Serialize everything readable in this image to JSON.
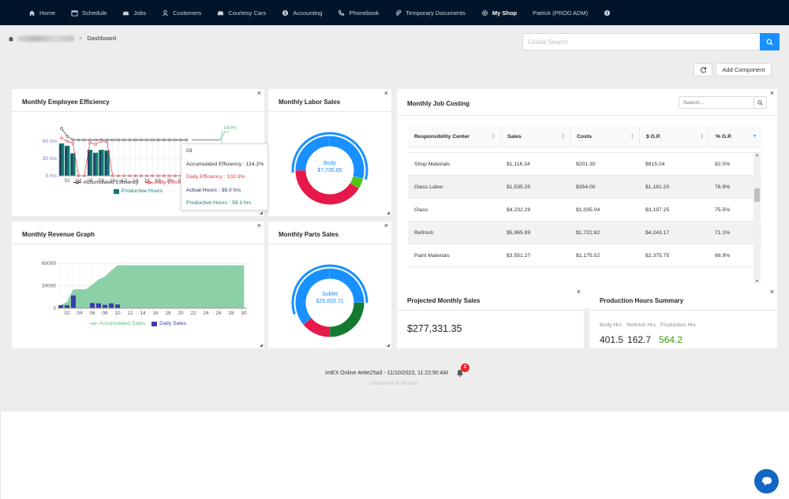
{
  "nav": {
    "items": [
      {
        "label": "Home",
        "icon": "home-icon"
      },
      {
        "label": "Schedule",
        "icon": "calendar-icon"
      },
      {
        "label": "Jobs",
        "icon": "car-icon"
      },
      {
        "label": "Customers",
        "icon": "user-icon"
      },
      {
        "label": "Courtesy Cars",
        "icon": "car-front-icon"
      },
      {
        "label": "Accounting",
        "icon": "dollar-icon"
      },
      {
        "label": "Phonebook",
        "icon": "phone-icon"
      },
      {
        "label": "Temporary Documents",
        "icon": "paperclip-icon"
      },
      {
        "label": "My Shop",
        "icon": "gear-icon"
      },
      {
        "label": "Patrick (PROD ADM)",
        "icon": ""
      }
    ]
  },
  "breadcrumb": {
    "current": "Dashboard"
  },
  "search": {
    "placeholder": "Global Search"
  },
  "toolbar": {
    "add_component": "Add Component"
  },
  "efficiency": {
    "title": "Monthly Employee Efficiency",
    "legend_accum": "Accumulated Efficiency",
    "legend_daily": "Daily Efficiency",
    "legend_prod": "Productive Hours",
    "tooltip": {
      "day": "03",
      "accum": "Accumulated Efficiency : 114.2%",
      "daily": "Daily Efficiency : 102.9%",
      "actual": "Actual Hours : 38.0 hrs",
      "productive": "Productive Hours : 39.1 hrs"
    }
  },
  "labor": {
    "title": "Monthly Labor Sales",
    "center_label": "Body",
    "center_value": "$7,736.65"
  },
  "parts": {
    "title": "Monthly Parts Sales",
    "center_label": "Sublet",
    "center_value": "$25,003.71"
  },
  "revenue": {
    "title": "Monthly Revenue Graph",
    "legend_accum": "Accumulated Sales",
    "legend_daily": "Daily Sales"
  },
  "job_costing": {
    "title": "Monthly Job Costing",
    "search_placeholder": "Search...",
    "columns": [
      "Responsibility Center",
      "Sales",
      "Costs",
      "$ G.P.",
      "% G.P."
    ],
    "rows": [
      [
        "Shop Materials",
        "$1,116.34",
        "$201.30",
        "$915.04",
        "82.0%"
      ],
      [
        "Glass Labor",
        "$1,535.20",
        "$354.00",
        "$1,181.20",
        "76.9%"
      ],
      [
        "Glass",
        "$4,232.29",
        "$1,035.04",
        "$3,197.25",
        "75.5%"
      ],
      [
        "Refinish",
        "$5,965.99",
        "$1,722.82",
        "$4,243.17",
        "71.1%"
      ],
      [
        "Paint Materials",
        "$3,551.27",
        "$1,175.52",
        "$2,375.75",
        "66.9%"
      ]
    ],
    "page": "1"
  },
  "projected": {
    "title": "Projected Monthly Sales",
    "value": "$277,331.35"
  },
  "production": {
    "title": "Production Hours Summary",
    "labels": [
      "Body Hrs",
      "Refinish Hrs",
      "Production Hrs"
    ],
    "values": [
      "401.5",
      "162.7",
      "564.2"
    ]
  },
  "footer": {
    "version": "ImEX Online 4e8e25a3 - 11/10/2023, 11:22:50 AM",
    "disclaimer": "Disclaimer & Notices",
    "badge": "2"
  },
  "colors": {
    "nav_bg": "#001529",
    "primary": "#1890ff",
    "productive": "#137a72",
    "green_value": "#389e0d",
    "daily": "#e8353f",
    "revenue_area": "#8bd0a7",
    "daily_sales": "#3d3da8"
  },
  "chart_data": [
    {
      "type": "bar",
      "title": "Monthly Employee Efficiency",
      "x": [
        "01",
        "02",
        "03",
        "04",
        "05",
        "06",
        "07",
        "08",
        "09",
        "10",
        "11",
        "12",
        "13",
        "14",
        "15",
        "16",
        "17",
        "18",
        "19",
        "20",
        "21",
        "22",
        "23",
        "24",
        "25",
        "26",
        "27",
        "28",
        "29",
        "30"
      ],
      "x_tick_labels": [
        "02",
        "04",
        "06",
        "08",
        "10",
        "12",
        "14",
        "16",
        "18",
        "20",
        "22"
      ],
      "y_tick_labels": [
        "0 hrs",
        "30 hrs",
        "60 hrs"
      ],
      "y2_tick_labels": [
        "140%"
      ],
      "series": [
        {
          "name": "Productive Hours",
          "values": [
            56,
            52,
            39,
            0,
            0,
            45,
            40,
            45,
            44,
            0,
            0,
            0,
            0,
            0,
            0,
            0,
            0,
            0,
            0,
            0,
            0,
            0,
            0,
            0,
            0,
            0,
            0,
            0,
            0,
            0
          ]
        },
        {
          "name": "Accumulated Efficiency",
          "values": [
            150,
            125,
            114.2,
            114,
            114,
            114,
            114,
            114,
            114,
            114,
            114,
            114,
            114,
            114,
            114,
            114,
            114,
            114,
            114,
            114,
            114,
            114,
            114,
            114,
            114,
            114,
            114,
            114,
            114,
            140
          ]
        },
        {
          "name": "Daily Efficiency",
          "values": [
            120,
            110,
            102.9,
            0,
            0,
            105,
            100,
            110,
            108,
            0,
            0,
            0,
            0,
            0,
            0,
            0,
            0,
            0,
            0,
            0,
            0,
            0,
            0,
            0,
            0,
            0,
            0,
            0,
            0,
            0
          ]
        }
      ]
    },
    {
      "type": "area",
      "title": "Monthly Revenue Graph",
      "x": [
        1,
        2,
        3,
        4,
        5,
        6,
        7,
        8,
        9,
        10,
        11,
        12,
        13,
        14,
        15,
        16,
        17,
        18,
        19,
        20,
        21,
        22,
        23,
        24,
        25,
        26,
        27,
        28,
        29,
        30
      ],
      "x_tick_labels": [
        "02",
        "04",
        "06",
        "08",
        "10",
        "12",
        "14",
        "16",
        "18",
        "20",
        "22",
        "24",
        "26",
        "28",
        "30"
      ],
      "y_tick_labels": [
        "0",
        "30000",
        "60000"
      ],
      "ylim": [
        0,
        60000
      ],
      "series": [
        {
          "name": "Accumulated Sales",
          "values": [
            4000,
            8000,
            25000,
            25000,
            25000,
            31000,
            38000,
            42000,
            50000,
            57000,
            57000,
            57000,
            57000,
            57000,
            57000,
            57000,
            57000,
            57000,
            57000,
            57000,
            57000,
            57000,
            57000,
            57000,
            57000,
            57000,
            57000,
            57000,
            57000,
            57000
          ]
        },
        {
          "name": "Daily Sales",
          "values": [
            4000,
            4000,
            17000,
            0,
            0,
            7000,
            6500,
            4500,
            6500,
            5000,
            0,
            0,
            0,
            0,
            0,
            0,
            0,
            0,
            0,
            0,
            0,
            0,
            0,
            0,
            0,
            0,
            0,
            0,
            0,
            0
          ]
        }
      ]
    }
  ]
}
